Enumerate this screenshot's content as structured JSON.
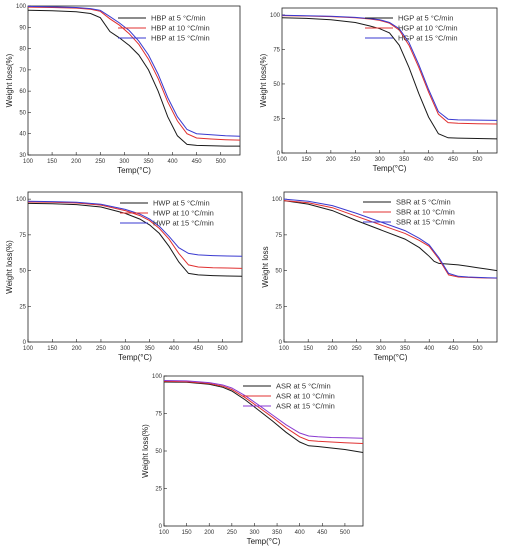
{
  "chart_data": [
    {
      "type": "line",
      "xlabel": "Temp(°C)",
      "ylabel": "Weight loss(%)",
      "xlim": [
        100,
        540
      ],
      "ylim": [
        30,
        100
      ],
      "xticks": [
        "100",
        "150",
        "200",
        "250",
        "300",
        "350",
        "400",
        "450",
        "500"
      ],
      "yticks": [
        "30",
        "40",
        "50",
        "60",
        "70",
        "80",
        "90",
        "100"
      ],
      "xtick_values": [
        100,
        150,
        200,
        250,
        300,
        350,
        400,
        450,
        500
      ],
      "ytick_values": [
        30,
        40,
        50,
        60,
        70,
        80,
        90,
        100
      ],
      "legend_position": "top-right",
      "series": [
        {
          "name": "HBP at 5 °C/min",
          "color": "#1a1a1a",
          "x": [
            100,
            150,
            200,
            230,
            250,
            270,
            290,
            310,
            330,
            350,
            370,
            390,
            410,
            430,
            450,
            480,
            510,
            540
          ],
          "y": [
            98,
            97.8,
            97.3,
            96.5,
            94.5,
            88,
            85,
            81.5,
            77,
            70,
            60,
            48,
            39,
            35,
            34.5,
            34.3,
            34.2,
            34.2
          ]
        },
        {
          "name": "HBP at 10 °C/min",
          "color": "#e03030",
          "x": [
            100,
            150,
            200,
            230,
            250,
            270,
            290,
            310,
            330,
            350,
            370,
            390,
            410,
            430,
            450,
            480,
            510,
            540
          ],
          "y": [
            99.5,
            99.3,
            99,
            98.5,
            97.5,
            94,
            91,
            87,
            82,
            75,
            66,
            55,
            46,
            40,
            38,
            37.5,
            37.2,
            37
          ]
        },
        {
          "name": "HBP at 15 °C/min",
          "color": "#3a3ad0",
          "x": [
            100,
            150,
            200,
            230,
            250,
            270,
            290,
            310,
            330,
            350,
            370,
            390,
            410,
            430,
            450,
            480,
            510,
            540
          ],
          "y": [
            99.8,
            99.6,
            99.3,
            98.8,
            98,
            95,
            92,
            88.5,
            83.5,
            77,
            68,
            57,
            48,
            42,
            40,
            39.5,
            39,
            38.8
          ]
        }
      ]
    },
    {
      "type": "line",
      "xlabel": "Temp(°C)",
      "ylabel": "Weight loss(%)",
      "xlim": [
        100,
        540
      ],
      "ylim": [
        0,
        105
      ],
      "xticks": [
        "100",
        "150",
        "200",
        "250",
        "300",
        "350",
        "400",
        "450",
        "500"
      ],
      "yticks": [
        "0",
        "25",
        "50",
        "75",
        "100"
      ],
      "xtick_values": [
        100,
        150,
        200,
        250,
        300,
        350,
        400,
        450,
        500
      ],
      "ytick_values": [
        0,
        25,
        50,
        75,
        100
      ],
      "legend_position": "top-right",
      "series": [
        {
          "name": "HGP at 5 °C/min",
          "color": "#1a1a1a",
          "x": [
            100,
            150,
            200,
            250,
            280,
            300,
            320,
            340,
            360,
            380,
            400,
            420,
            440,
            460,
            500,
            540
          ],
          "y": [
            98,
            97.5,
            96.5,
            94.5,
            92,
            90,
            87,
            78,
            62,
            43,
            26,
            14,
            11,
            10.8,
            10.5,
            10.2
          ]
        },
        {
          "name": "HGP at 10 °C/min",
          "color": "#e03030",
          "x": [
            100,
            150,
            200,
            250,
            280,
            300,
            320,
            340,
            360,
            380,
            400,
            420,
            440,
            460,
            500,
            540
          ],
          "y": [
            99.5,
            99.2,
            98.8,
            98,
            97,
            96,
            94,
            89,
            78,
            62,
            44,
            28,
            22,
            21.5,
            21.2,
            21
          ]
        },
        {
          "name": "HGP at 15 °C/min",
          "color": "#3a3ad0",
          "x": [
            100,
            150,
            200,
            250,
            280,
            300,
            320,
            340,
            360,
            380,
            400,
            420,
            440,
            460,
            500,
            540
          ],
          "y": [
            99.7,
            99.4,
            99,
            98.2,
            97.3,
            96.5,
            94.5,
            90,
            80,
            64,
            46,
            30,
            24.5,
            24,
            23.8,
            23.6
          ]
        }
      ]
    },
    {
      "type": "line",
      "xlabel": "Temp(°C)",
      "ylabel": "Weight loss(%)",
      "xlim": [
        100,
        540
      ],
      "ylim": [
        0,
        105
      ],
      "xticks": [
        "100",
        "150",
        "200",
        "250",
        "300",
        "350",
        "400",
        "450",
        "500"
      ],
      "yticks": [
        "0",
        "25",
        "50",
        "75",
        "100"
      ],
      "xtick_values": [
        100,
        150,
        200,
        250,
        300,
        350,
        400,
        450,
        500
      ],
      "ytick_values": [
        0,
        25,
        50,
        75,
        100
      ],
      "legend_position": "top-right",
      "series": [
        {
          "name": "HWP at 5 °C/min",
          "color": "#1a1a1a",
          "x": [
            100,
            150,
            200,
            250,
            300,
            330,
            350,
            370,
            390,
            410,
            430,
            450,
            480,
            510,
            540
          ],
          "y": [
            97,
            96.8,
            96.2,
            94.5,
            90,
            86,
            82,
            76,
            67,
            56,
            48,
            47,
            46.5,
            46.2,
            46
          ]
        },
        {
          "name": "HWP at 10 °C/min",
          "color": "#e03030",
          "x": [
            100,
            150,
            200,
            250,
            300,
            330,
            350,
            370,
            390,
            410,
            430,
            450,
            480,
            510,
            540
          ],
          "y": [
            98,
            97.8,
            97.3,
            95.8,
            92,
            88.5,
            85,
            79.5,
            72,
            62,
            54,
            52.5,
            52,
            51.8,
            51.5
          ]
        },
        {
          "name": "HWP at 15 °C/min",
          "color": "#3a3ad0",
          "x": [
            100,
            150,
            200,
            250,
            300,
            330,
            350,
            370,
            390,
            410,
            430,
            450,
            480,
            510,
            540
          ],
          "y": [
            98.5,
            98.3,
            97.8,
            96.4,
            92.8,
            89.5,
            86,
            81,
            74,
            66,
            62,
            61,
            60.5,
            60.2,
            60
          ]
        }
      ]
    },
    {
      "type": "line",
      "xlabel": "Temp(°C)",
      "ylabel": "Weight loss",
      "xlim": [
        100,
        540
      ],
      "ylim": [
        0,
        105
      ],
      "xticks": [
        "100",
        "150",
        "200",
        "250",
        "300",
        "350",
        "400",
        "450",
        "500"
      ],
      "yticks": [
        "0",
        "25",
        "50",
        "75",
        "100"
      ],
      "xtick_values": [
        100,
        150,
        200,
        250,
        300,
        350,
        400,
        450,
        500
      ],
      "ytick_values": [
        0,
        25,
        50,
        75,
        100
      ],
      "legend_position": "top-right",
      "series": [
        {
          "name": "SBR at 5 °C/min",
          "color": "#1a1a1a",
          "x": [
            100,
            150,
            200,
            250,
            300,
            350,
            380,
            400,
            410,
            420,
            440,
            460,
            480,
            500,
            520,
            540
          ],
          "y": [
            99,
            96.5,
            92,
            85,
            78.5,
            72,
            66,
            60,
            56.5,
            55,
            54.5,
            54,
            53,
            52,
            51,
            50
          ]
        },
        {
          "name": "SBR at 10 °C/min",
          "color": "#e03030",
          "x": [
            100,
            150,
            200,
            250,
            300,
            350,
            380,
            400,
            420,
            440,
            460,
            480,
            500,
            520,
            540
          ],
          "y": [
            99,
            97.5,
            94,
            88,
            82,
            76,
            71,
            67,
            58,
            47,
            45.5,
            45.2,
            45,
            44.8,
            44.7
          ]
        },
        {
          "name": "SBR at 15 °C/min",
          "color": "#3a3ad0",
          "x": [
            100,
            150,
            200,
            250,
            300,
            350,
            380,
            400,
            420,
            440,
            460,
            480,
            500,
            520,
            540
          ],
          "y": [
            100,
            98.5,
            95.5,
            90,
            84,
            78,
            72.5,
            68,
            59,
            48,
            46,
            45.5,
            45.2,
            45,
            44.8
          ]
        }
      ]
    },
    {
      "type": "line",
      "xlabel": "Temp(°C)",
      "ylabel": "Weight loss(%)",
      "xlim": [
        100,
        540
      ],
      "ylim": [
        0,
        100
      ],
      "xticks": [
        "100",
        "150",
        "200",
        "250",
        "300",
        "350",
        "400",
        "450",
        "500"
      ],
      "yticks": [
        "0",
        "25",
        "50",
        "75",
        "100"
      ],
      "xtick_values": [
        100,
        150,
        200,
        250,
        300,
        350,
        400,
        450,
        500
      ],
      "ytick_values": [
        0,
        25,
        50,
        75,
        100
      ],
      "legend_position": "top-right",
      "series": [
        {
          "name": "ASR at 5 °C/min",
          "color": "#1a1a1a",
          "x": [
            100,
            150,
            200,
            230,
            250,
            280,
            310,
            340,
            370,
            400,
            420,
            440,
            470,
            500,
            540
          ],
          "y": [
            96,
            95.8,
            94.5,
            92.5,
            90,
            84,
            77,
            70,
            62.5,
            56,
            53.5,
            53,
            52,
            51,
            49
          ]
        },
        {
          "name": "ASR at 10 °C/min",
          "color": "#e03030",
          "x": [
            100,
            150,
            200,
            230,
            250,
            280,
            310,
            340,
            370,
            400,
            420,
            440,
            470,
            500,
            540
          ],
          "y": [
            96.5,
            96.2,
            95,
            93.2,
            91,
            85.5,
            79,
            72.5,
            65.5,
            59.5,
            57,
            56.5,
            56,
            55.5,
            55
          ]
        },
        {
          "name": "ASR at 15 °C/min",
          "color": "#8a3ad0",
          "x": [
            100,
            150,
            200,
            230,
            250,
            280,
            310,
            340,
            370,
            400,
            420,
            440,
            470,
            500,
            540
          ],
          "y": [
            97,
            96.7,
            95.6,
            94,
            92,
            86.8,
            80.5,
            74,
            67.5,
            62,
            60,
            59.5,
            59,
            58.8,
            58.5
          ]
        }
      ]
    }
  ]
}
